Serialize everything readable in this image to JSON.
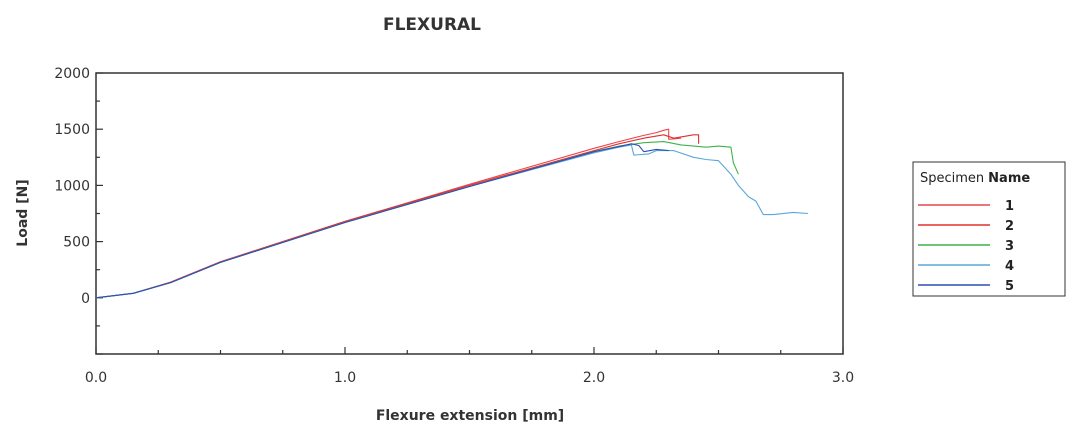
{
  "chart_data": {
    "type": "line",
    "title": "FLEXURAL",
    "xlabel": "Flexure extension [mm]",
    "ylabel": "Load [N]",
    "xlim": [
      0.0,
      3.0
    ],
    "ylim": [
      -500,
      2000
    ],
    "x_ticks": [
      0.0,
      1.0,
      2.0,
      3.0
    ],
    "x_tick_labels": [
      "0.0",
      "1.0",
      "2.0",
      "3.0"
    ],
    "y_ticks": [
      0,
      500,
      1000,
      1500,
      2000
    ],
    "y_tick_labels": [
      "0",
      "500",
      "1000",
      "1500",
      "2000"
    ],
    "grid": false,
    "legend": {
      "title_a": "Specimen",
      "title_b": "Name",
      "placement": "right"
    },
    "series": [
      {
        "name": "1",
        "color": "#e8474c",
        "x": [
          0.0,
          0.15,
          0.3,
          0.5,
          1.0,
          1.5,
          2.0,
          2.1,
          2.2,
          2.25,
          2.28,
          2.3,
          2.3,
          2.35
        ],
        "y": [
          0,
          40,
          140,
          320,
          680,
          1010,
          1330,
          1390,
          1445,
          1470,
          1490,
          1500,
          1410,
          1420
        ]
      },
      {
        "name": "2",
        "color": "#e0302c",
        "x": [
          0.0,
          0.15,
          0.3,
          0.5,
          1.0,
          1.5,
          2.0,
          2.1,
          2.2,
          2.28,
          2.32,
          2.4,
          2.42,
          2.42
        ],
        "y": [
          0,
          40,
          140,
          320,
          680,
          1000,
          1310,
          1370,
          1420,
          1450,
          1420,
          1450,
          1450,
          1370
        ]
      },
      {
        "name": "3",
        "color": "#3db34a",
        "x": [
          0.0,
          0.15,
          0.3,
          0.5,
          1.0,
          1.5,
          2.0,
          2.1,
          2.2,
          2.28,
          2.35,
          2.45,
          2.5,
          2.55,
          2.56,
          2.58
        ],
        "y": [
          0,
          40,
          135,
          315,
          670,
          990,
          1300,
          1350,
          1380,
          1390,
          1360,
          1340,
          1350,
          1340,
          1200,
          1100
        ]
      },
      {
        "name": "4",
        "color": "#58a8d8",
        "x": [
          0.0,
          0.15,
          0.3,
          0.5,
          1.0,
          1.5,
          2.0,
          2.1,
          2.15,
          2.16,
          2.22,
          2.25,
          2.32,
          2.4,
          2.45,
          2.5,
          2.55,
          2.58,
          2.62,
          2.65,
          2.68,
          2.72,
          2.8,
          2.86
        ],
        "y": [
          0,
          40,
          135,
          315,
          670,
          990,
          1290,
          1340,
          1360,
          1270,
          1280,
          1310,
          1310,
          1250,
          1230,
          1220,
          1100,
          1000,
          900,
          860,
          740,
          740,
          760,
          750
        ]
      },
      {
        "name": "5",
        "color": "#2b4fb6",
        "x": [
          0.0,
          0.15,
          0.3,
          0.5,
          1.0,
          1.5,
          2.0,
          2.1,
          2.15,
          2.18,
          2.2,
          2.25,
          2.3
        ],
        "y": [
          0,
          40,
          135,
          315,
          670,
          990,
          1300,
          1345,
          1370,
          1355,
          1300,
          1320,
          1310
        ]
      }
    ]
  }
}
